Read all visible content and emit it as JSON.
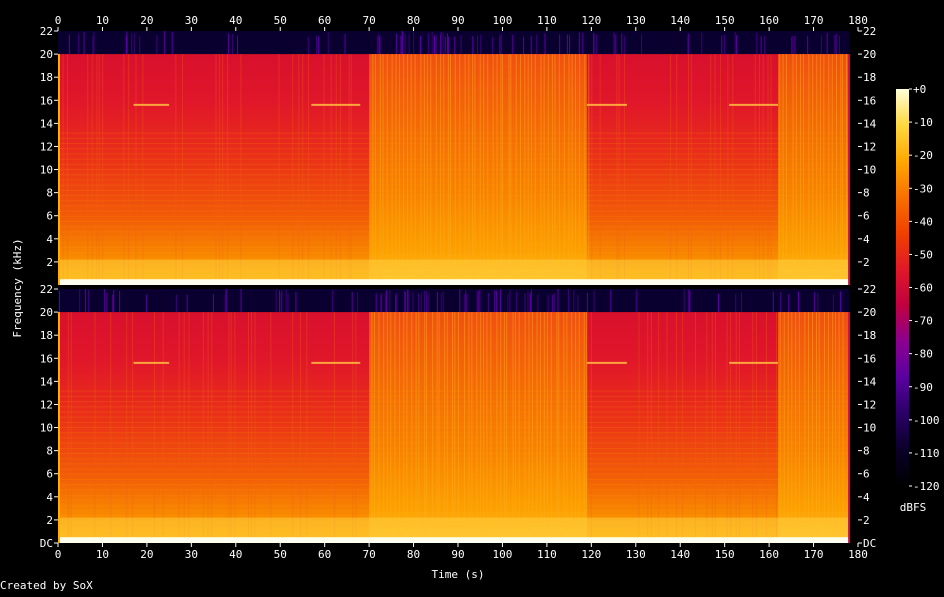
{
  "chart_data": {
    "type": "heatmap",
    "title": "",
    "xlabel": "Time (s)",
    "ylabel": "Frequency (kHz)",
    "colorbar_label": "dBFS",
    "footer": "Created by SoX",
    "x_range": [
      0,
      180
    ],
    "x_ticks": [
      0,
      10,
      20,
      30,
      40,
      50,
      60,
      70,
      80,
      90,
      100,
      110,
      120,
      130,
      140,
      150,
      160,
      170,
      180
    ],
    "y_range_khz": [
      0,
      22
    ],
    "y_tick_labels": [
      "DC",
      "2",
      "4",
      "6",
      "8",
      "10",
      "12",
      "14",
      "16",
      "18",
      "20",
      "22"
    ],
    "y_tick_values": [
      0,
      2,
      4,
      6,
      8,
      10,
      12,
      14,
      16,
      18,
      20,
      22
    ],
    "colorbar_range_dbfs": [
      -120,
      0
    ],
    "colorbar_ticks": [
      0,
      -10,
      -20,
      -30,
      -40,
      -50,
      -60,
      -70,
      -80,
      -90,
      -100,
      -110,
      -120
    ],
    "colorbar_tick_labels": [
      "+0",
      "-10",
      "-20",
      "-30",
      "-40",
      "-50",
      "-60",
      "-70",
      "-80",
      "-90",
      "-100",
      "-110",
      "-120"
    ],
    "channels": 2,
    "lowpass_cutoff_khz": 20,
    "bright_sections_s": [
      [
        70,
        119
      ],
      [
        162,
        178
      ]
    ],
    "tone_15_6khz_s": [
      [
        17,
        25
      ],
      [
        57,
        68
      ],
      [
        119,
        128
      ],
      [
        151,
        162
      ]
    ],
    "audio_end_s": 180,
    "colormap": [
      "#000000",
      "#0a0028",
      "#2a0066",
      "#5a00a0",
      "#8c0090",
      "#c00040",
      "#e01828",
      "#f04000",
      "#f87000",
      "#ffa800",
      "#ffd840",
      "#ffffd8"
    ]
  }
}
